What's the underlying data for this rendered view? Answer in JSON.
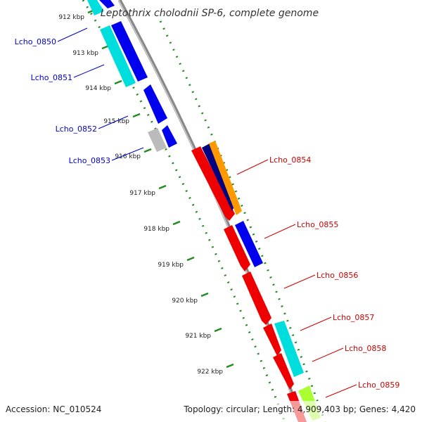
{
  "title": "Leptothrix cholodnii SP-6, complete genome",
  "footer": {
    "accession": "Accession: NC_010524",
    "summary": "Topology: circular; Length: 4,909,403 bp; Genes: 4,420"
  },
  "ticks": [
    "912 kbp",
    "913 kbp",
    "914 kbp",
    "915 kbp",
    "916 kbp",
    "917 kbp",
    "918 kbp",
    "919 kbp",
    "920 kbp",
    "921 kbp",
    "922 kbp"
  ],
  "genes": [
    {
      "name": "Lcho_0850",
      "strand": "minus",
      "color": "#0000ee"
    },
    {
      "name": "Lcho_0851",
      "strand": "minus",
      "color": "#0000ee"
    },
    {
      "name": "Lcho_0852",
      "strand": "minus",
      "color": "#0000ee"
    },
    {
      "name": "Lcho_0853",
      "strand": "minus",
      "color": "#0000ee"
    },
    {
      "name": "Lcho_0854",
      "strand": "plus",
      "color": "#ee0000"
    },
    {
      "name": "Lcho_0855",
      "strand": "plus",
      "color": "#ee0000"
    },
    {
      "name": "Lcho_0856",
      "strand": "plus",
      "color": "#ee0000"
    },
    {
      "name": "Lcho_0857",
      "strand": "plus",
      "color": "#ee0000"
    },
    {
      "name": "Lcho_0858",
      "strand": "plus",
      "color": "#ee0000"
    },
    {
      "name": "Lcho_0859",
      "strand": "plus",
      "color": "#ee0000"
    }
  ],
  "colors": {
    "backbone": "#888888",
    "tick_ring": "#228b22",
    "cog_cyan": "#00dddd",
    "cog_orange": "#ff9900",
    "cog_navy": "#000080",
    "cog_gray": "#bbbbbb",
    "cog_lime": "#aaff33"
  }
}
